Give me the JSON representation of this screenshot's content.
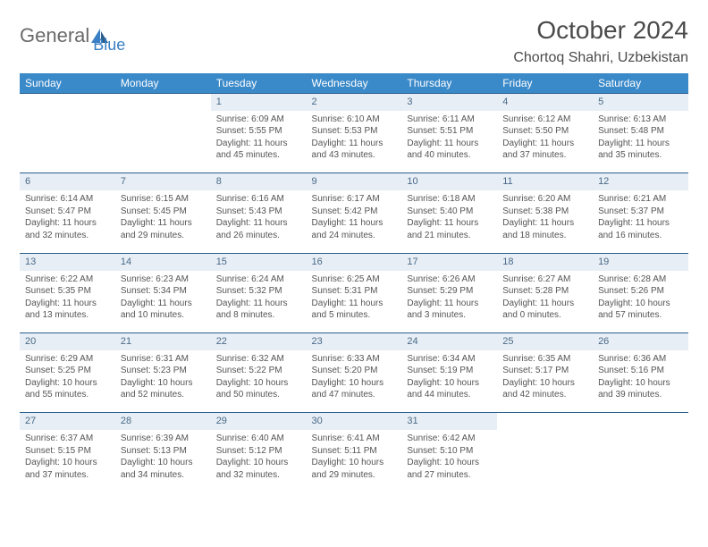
{
  "logo": {
    "text1": "General",
    "text2": "Blue"
  },
  "title": "October 2024",
  "location": "Chortoq Shahri, Uzbekistan",
  "dayHeaders": [
    "Sunday",
    "Monday",
    "Tuesday",
    "Wednesday",
    "Thursday",
    "Friday",
    "Saturday"
  ],
  "colors": {
    "headerBg": "#3a89c9",
    "dayRowBg": "#e7eef5",
    "dayRowBorder": "#2b5f8c",
    "text": "#4a4a4a",
    "body": "#555555"
  },
  "typography": {
    "title_fontsize": 28,
    "location_fontsize": 16,
    "header_fontsize": 12,
    "cell_fontsize": 10
  },
  "grid": {
    "cols": 7,
    "rows": 5,
    "firstDayOffset": 2,
    "daysInMonth": 31
  },
  "days": {
    "1": {
      "sunrise": "6:09 AM",
      "sunset": "5:55 PM",
      "daylight": "11 hours and 45 minutes."
    },
    "2": {
      "sunrise": "6:10 AM",
      "sunset": "5:53 PM",
      "daylight": "11 hours and 43 minutes."
    },
    "3": {
      "sunrise": "6:11 AM",
      "sunset": "5:51 PM",
      "daylight": "11 hours and 40 minutes."
    },
    "4": {
      "sunrise": "6:12 AM",
      "sunset": "5:50 PM",
      "daylight": "11 hours and 37 minutes."
    },
    "5": {
      "sunrise": "6:13 AM",
      "sunset": "5:48 PM",
      "daylight": "11 hours and 35 minutes."
    },
    "6": {
      "sunrise": "6:14 AM",
      "sunset": "5:47 PM",
      "daylight": "11 hours and 32 minutes."
    },
    "7": {
      "sunrise": "6:15 AM",
      "sunset": "5:45 PM",
      "daylight": "11 hours and 29 minutes."
    },
    "8": {
      "sunrise": "6:16 AM",
      "sunset": "5:43 PM",
      "daylight": "11 hours and 26 minutes."
    },
    "9": {
      "sunrise": "6:17 AM",
      "sunset": "5:42 PM",
      "daylight": "11 hours and 24 minutes."
    },
    "10": {
      "sunrise": "6:18 AM",
      "sunset": "5:40 PM",
      "daylight": "11 hours and 21 minutes."
    },
    "11": {
      "sunrise": "6:20 AM",
      "sunset": "5:38 PM",
      "daylight": "11 hours and 18 minutes."
    },
    "12": {
      "sunrise": "6:21 AM",
      "sunset": "5:37 PM",
      "daylight": "11 hours and 16 minutes."
    },
    "13": {
      "sunrise": "6:22 AM",
      "sunset": "5:35 PM",
      "daylight": "11 hours and 13 minutes."
    },
    "14": {
      "sunrise": "6:23 AM",
      "sunset": "5:34 PM",
      "daylight": "11 hours and 10 minutes."
    },
    "15": {
      "sunrise": "6:24 AM",
      "sunset": "5:32 PM",
      "daylight": "11 hours and 8 minutes."
    },
    "16": {
      "sunrise": "6:25 AM",
      "sunset": "5:31 PM",
      "daylight": "11 hours and 5 minutes."
    },
    "17": {
      "sunrise": "6:26 AM",
      "sunset": "5:29 PM",
      "daylight": "11 hours and 3 minutes."
    },
    "18": {
      "sunrise": "6:27 AM",
      "sunset": "5:28 PM",
      "daylight": "11 hours and 0 minutes."
    },
    "19": {
      "sunrise": "6:28 AM",
      "sunset": "5:26 PM",
      "daylight": "10 hours and 57 minutes."
    },
    "20": {
      "sunrise": "6:29 AM",
      "sunset": "5:25 PM",
      "daylight": "10 hours and 55 minutes."
    },
    "21": {
      "sunrise": "6:31 AM",
      "sunset": "5:23 PM",
      "daylight": "10 hours and 52 minutes."
    },
    "22": {
      "sunrise": "6:32 AM",
      "sunset": "5:22 PM",
      "daylight": "10 hours and 50 minutes."
    },
    "23": {
      "sunrise": "6:33 AM",
      "sunset": "5:20 PM",
      "daylight": "10 hours and 47 minutes."
    },
    "24": {
      "sunrise": "6:34 AM",
      "sunset": "5:19 PM",
      "daylight": "10 hours and 44 minutes."
    },
    "25": {
      "sunrise": "6:35 AM",
      "sunset": "5:17 PM",
      "daylight": "10 hours and 42 minutes."
    },
    "26": {
      "sunrise": "6:36 AM",
      "sunset": "5:16 PM",
      "daylight": "10 hours and 39 minutes."
    },
    "27": {
      "sunrise": "6:37 AM",
      "sunset": "5:15 PM",
      "daylight": "10 hours and 37 minutes."
    },
    "28": {
      "sunrise": "6:39 AM",
      "sunset": "5:13 PM",
      "daylight": "10 hours and 34 minutes."
    },
    "29": {
      "sunrise": "6:40 AM",
      "sunset": "5:12 PM",
      "daylight": "10 hours and 32 minutes."
    },
    "30": {
      "sunrise": "6:41 AM",
      "sunset": "5:11 PM",
      "daylight": "10 hours and 29 minutes."
    },
    "31": {
      "sunrise": "6:42 AM",
      "sunset": "5:10 PM",
      "daylight": "10 hours and 27 minutes."
    }
  },
  "labels": {
    "sunrise": "Sunrise:",
    "sunset": "Sunset:",
    "daylight": "Daylight:"
  }
}
